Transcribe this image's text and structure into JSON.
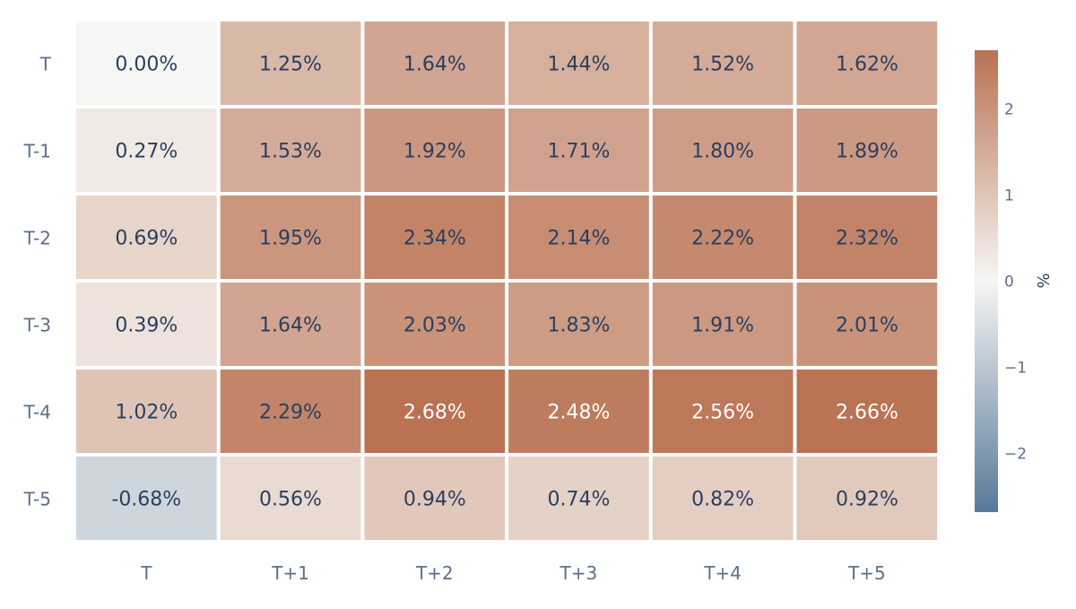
{
  "chart_data": {
    "type": "heatmap",
    "title": "",
    "x_categories": [
      "T",
      "T+1",
      "T+2",
      "T+3",
      "T+4",
      "T+5"
    ],
    "y_categories": [
      "T",
      "T-1",
      "T-2",
      "T-3",
      "T-4",
      "T-5"
    ],
    "values": [
      [
        0.0,
        1.25,
        1.64,
        1.44,
        1.52,
        1.62
      ],
      [
        0.27,
        1.53,
        1.92,
        1.71,
        1.8,
        1.89
      ],
      [
        0.69,
        1.95,
        2.34,
        2.14,
        2.22,
        2.32
      ],
      [
        0.39,
        1.64,
        2.03,
        1.83,
        1.91,
        2.01
      ],
      [
        1.02,
        2.29,
        2.68,
        2.48,
        2.56,
        2.66
      ],
      [
        -0.68,
        0.56,
        0.94,
        0.74,
        0.82,
        0.92
      ]
    ],
    "cell_labels": [
      [
        "0.00%",
        "1.25%",
        "1.64%",
        "1.44%",
        "1.52%",
        "1.62%"
      ],
      [
        "0.27%",
        "1.53%",
        "1.92%",
        "1.71%",
        "1.80%",
        "1.89%"
      ],
      [
        "0.69%",
        "1.95%",
        "2.34%",
        "2.14%",
        "2.22%",
        "2.32%"
      ],
      [
        "0.39%",
        "1.64%",
        "2.03%",
        "1.83%",
        "1.91%",
        "2.01%"
      ],
      [
        "1.02%",
        "2.29%",
        "2.68%",
        "2.48%",
        "2.56%",
        "2.66%"
      ],
      [
        "-0.68%",
        "0.56%",
        "0.94%",
        "0.74%",
        "0.82%",
        "0.92%"
      ]
    ],
    "colorbar": {
      "label": "%",
      "range": [
        -2.68,
        2.68
      ],
      "ticks": [
        2,
        1,
        0,
        -1,
        -2
      ],
      "tick_labels": [
        "2",
        "1",
        "0",
        "−1",
        "−2"
      ],
      "colors": {
        "negative": "#57799a",
        "neutral": "#f6f6f4",
        "positive": "#ba7252"
      }
    },
    "colors": {
      "text_dark": "#2a3f5f",
      "text_light": "#ffffff",
      "axis_label": "#5e6f87",
      "gap": "#ffffff"
    }
  }
}
